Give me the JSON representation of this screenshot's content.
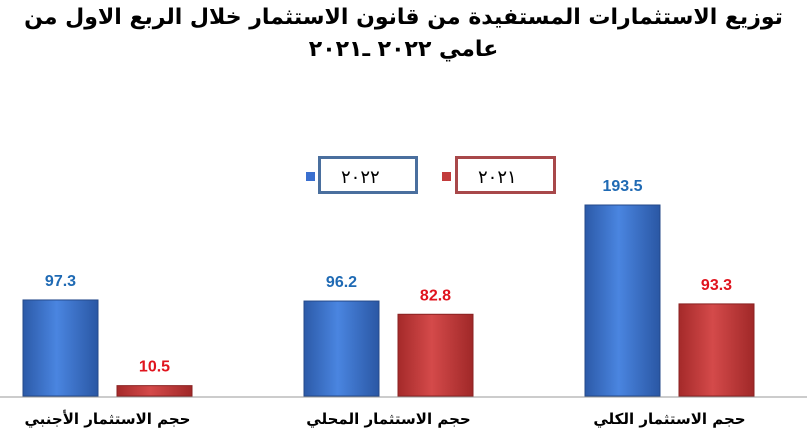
{
  "chart_data": {
    "type": "bar",
    "title": "توزيع الاستثمارات المستفيدة من قانون الاستثمار خلال الربع الاول من عامي ٢٠٢٢ ـ٢٠٢١",
    "title_lines": [
      "توزيع الاستثمارات المستفيدة من قانون الاستثمار خلال الربع الاول من",
      "عامي ٢٠٢٢ ـ٢٠٢١"
    ],
    "categories": [
      "حجم الاستثمار الأجنبي",
      "حجم الاستثمار المحلي",
      "حجم الاستثمار الكلي"
    ],
    "series": [
      {
        "name": "٢٠٢٢",
        "values": [
          97.3,
          96.2,
          193.5
        ],
        "color": "#3a6fcf",
        "label_color": "#1f6ab4"
      },
      {
        "name": "٢٠٢١",
        "values": [
          10.5,
          82.8,
          93.3
        ],
        "color": "#c23b3b",
        "label_color": "#e0141e"
      }
    ],
    "value_labels": [
      [
        "97.3",
        "96.2",
        "193.5"
      ],
      [
        "10.5",
        "82.8",
        "93.3"
      ]
    ],
    "ylim": [
      0,
      200
    ],
    "grid": false,
    "legend_position": "top-center"
  }
}
